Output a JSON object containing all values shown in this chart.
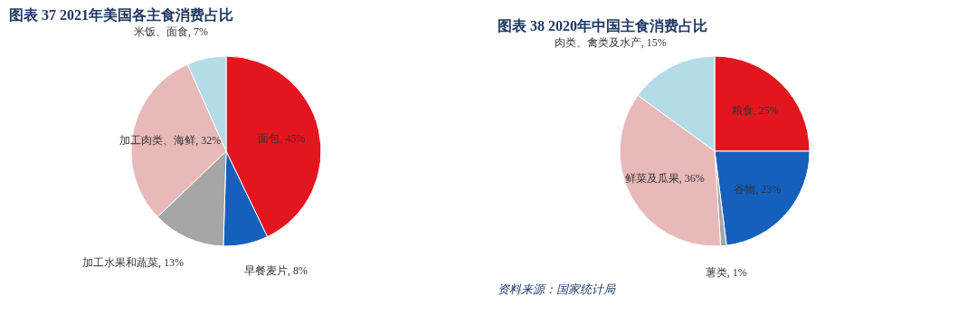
{
  "chart_data": [
    {
      "type": "pie",
      "title": "图表 37   2021年美国各主食消费占比",
      "categories": [
        "面包",
        "早餐麦片",
        "加工水果和蔬菜",
        "加工肉类、海鲜",
        "米饭、面食"
      ],
      "values": [
        45,
        8,
        13,
        32,
        7
      ],
      "value_labels": [
        "45%",
        "8%",
        "13%",
        "32%",
        "7%"
      ],
      "colors": [
        "#e3161f",
        "#1560bd",
        "#a6a6a6",
        "#e8b9b9",
        "#b4dce8"
      ],
      "legend": false
    },
    {
      "type": "pie",
      "title": "图表 38   2020年中国主食消费占比",
      "categories": [
        "粮食",
        "谷物",
        "薯类",
        "鲜菜及瓜果",
        "肉类、禽类及水产"
      ],
      "values": [
        25,
        23,
        1,
        36,
        15
      ],
      "value_labels": [
        "25%",
        "23%",
        "1%",
        "36%",
        "15%"
      ],
      "colors": [
        "#e3161f",
        "#1560bd",
        "#a6a6a6",
        "#e8b9b9",
        "#b4dce8"
      ],
      "legend": false,
      "annotations": [
        "资料来源：国家统计局"
      ]
    }
  ]
}
